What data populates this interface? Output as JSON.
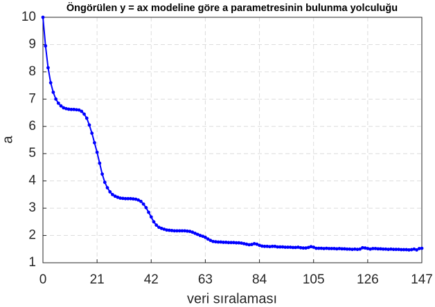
{
  "chart_data": {
    "type": "line",
    "title": "Öngörülen y = ax modeline göre a parametresinin bulunma yolculuğu",
    "x_label": "veri sıralaması",
    "y_label": "a",
    "xlim": [
      0,
      147
    ],
    "ylim": [
      1,
      10
    ],
    "xticks": [
      0,
      21,
      42,
      63,
      84,
      105,
      126,
      147
    ],
    "yticks": [
      1,
      2,
      3,
      4,
      5,
      6,
      7,
      8,
      9,
      10
    ],
    "grid": true,
    "x": [
      0,
      1,
      2,
      3,
      4,
      5,
      6,
      7,
      8,
      9,
      10,
      11,
      12,
      13,
      14,
      15,
      16,
      17,
      18,
      19,
      20,
      21,
      22,
      23,
      24,
      25,
      26,
      27,
      28,
      29,
      30,
      31,
      32,
      33,
      34,
      35,
      36,
      37,
      38,
      39,
      40,
      41,
      42,
      43,
      44,
      45,
      46,
      47,
      48,
      49,
      50,
      51,
      52,
      53,
      54,
      55,
      56,
      57,
      58,
      59,
      60,
      61,
      62,
      63,
      64,
      65,
      66,
      67,
      68,
      69,
      70,
      71,
      72,
      73,
      74,
      75,
      76,
      77,
      78,
      79,
      80,
      81,
      82,
      83,
      84,
      85,
      86,
      87,
      88,
      89,
      90,
      91,
      92,
      93,
      94,
      95,
      96,
      97,
      98,
      99,
      100,
      101,
      102,
      103,
      104,
      105,
      106,
      107,
      108,
      109,
      110,
      111,
      112,
      113,
      114,
      115,
      116,
      117,
      118,
      119,
      120,
      121,
      122,
      123,
      124,
      125,
      126,
      127,
      128,
      129,
      130,
      131,
      132,
      133,
      134,
      135,
      136,
      137,
      138,
      139,
      140,
      141,
      142,
      143,
      144,
      145,
      146,
      147
    ],
    "series": [
      {
        "name": "a",
        "color": "#0000ff",
        "values": [
          10,
          8.95,
          8.15,
          7.6,
          7.25,
          7.0,
          6.85,
          6.75,
          6.68,
          6.65,
          6.63,
          6.62,
          6.62,
          6.61,
          6.6,
          6.55,
          6.45,
          6.3,
          6.05,
          5.75,
          5.4,
          5.05,
          4.65,
          4.25,
          3.95,
          3.75,
          3.6,
          3.5,
          3.44,
          3.4,
          3.37,
          3.36,
          3.35,
          3.35,
          3.35,
          3.34,
          3.33,
          3.3,
          3.25,
          3.15,
          3.02,
          2.85,
          2.68,
          2.5,
          2.38,
          2.3,
          2.26,
          2.23,
          2.2,
          2.19,
          2.18,
          2.17,
          2.17,
          2.17,
          2.17,
          2.17,
          2.16,
          2.15,
          2.12,
          2.08,
          2.04,
          2.0,
          1.97,
          1.93,
          1.87,
          1.82,
          1.78,
          1.77,
          1.76,
          1.76,
          1.75,
          1.75,
          1.74,
          1.74,
          1.74,
          1.73,
          1.73,
          1.72,
          1.7,
          1.68,
          1.66,
          1.67,
          1.7,
          1.68,
          1.64,
          1.61,
          1.6,
          1.6,
          1.59,
          1.6,
          1.6,
          1.58,
          1.58,
          1.58,
          1.57,
          1.57,
          1.57,
          1.56,
          1.56,
          1.57,
          1.55,
          1.54,
          1.54,
          1.56,
          1.59,
          1.57,
          1.53,
          1.53,
          1.53,
          1.52,
          1.53,
          1.52,
          1.52,
          1.52,
          1.51,
          1.52,
          1.51,
          1.51,
          1.5,
          1.5,
          1.49,
          1.5,
          1.49,
          1.5,
          1.55,
          1.54,
          1.52,
          1.5,
          1.52,
          1.52,
          1.51,
          1.51,
          1.5,
          1.5,
          1.49,
          1.5,
          1.49,
          1.49,
          1.49,
          1.48,
          1.48,
          1.48,
          1.47,
          1.48,
          1.5,
          1.47,
          1.52,
          1.53
        ]
      }
    ]
  }
}
